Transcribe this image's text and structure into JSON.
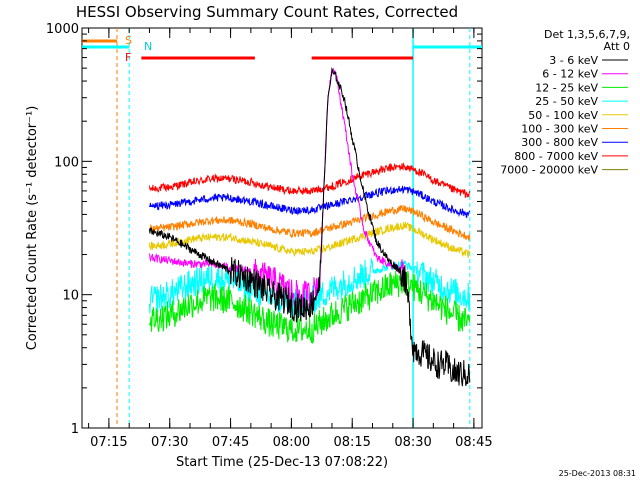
{
  "chart_data": {
    "type": "line",
    "title": "HESSI Observing Summary Count Rates, Corrected",
    "xlabel": "Start Time (25-Dec-13 07:08:22)",
    "ylabel": "Corrected Count Rate (s⁻¹ detector⁻¹)",
    "xlim": [
      "07:08:22",
      "08:47:00"
    ],
    "ylim": [
      1,
      1000
    ],
    "yscale": "log",
    "x_ticks": [
      "07:15",
      "07:30",
      "07:45",
      "08:00",
      "08:15",
      "08:30",
      "08:45"
    ],
    "y_ticks": [
      {
        "value": 1,
        "label": "1"
      },
      {
        "value": 10,
        "label": "10"
      },
      {
        "value": 100,
        "label": "100"
      },
      {
        "value": 1000,
        "label": "1000"
      }
    ],
    "legend_title": [
      "Det 1,3,5,6,7,9,",
      "Att 0"
    ],
    "legend_placement": "right",
    "series": [
      {
        "name": "3 - 6 keV",
        "color": "#000000",
        "x": [
          "07:25",
          "07:30",
          "07:35",
          "07:40",
          "07:45",
          "07:50",
          "07:55",
          "07:59",
          "08:01",
          "08:03",
          "08:05",
          "08:07",
          "08:09",
          "08:10",
          "08:11",
          "08:13",
          "08:15",
          "08:18",
          "08:21",
          "08:24",
          "08:26",
          "08:27",
          "08:28",
          "08:29",
          "08:30",
          "08:33",
          "08:36",
          "08:38",
          "08:40",
          "08:44"
        ],
        "y": [
          30,
          27,
          22,
          18,
          15,
          13,
          10,
          9,
          8,
          8,
          8.5,
          12,
          300,
          470,
          430,
          300,
          150,
          55,
          25,
          18,
          16,
          15,
          13,
          8,
          4,
          3.5,
          3,
          3,
          2.6,
          2.5
        ]
      },
      {
        "name": "6 - 12 keV",
        "color": "#ff00ff",
        "x": [
          "07:25",
          "07:30",
          "07:35",
          "07:40",
          "07:45",
          "07:50",
          "07:55",
          "07:59",
          "08:01",
          "08:03",
          "08:05",
          "08:07",
          "08:09",
          "08:10",
          "08:11",
          "08:13",
          "08:15",
          "08:18",
          "08:21",
          "08:24",
          "08:26",
          "08:27",
          "08:28"
        ],
        "y": [
          19,
          18,
          17,
          17,
          16,
          15,
          13,
          11,
          10,
          10,
          10,
          13,
          300,
          500,
          450,
          200,
          80,
          30,
          19,
          17,
          16,
          15,
          14
        ]
      },
      {
        "name": "12 - 25 keV",
        "color": "#00ee00",
        "x": [
          "07:25",
          "07:30",
          "07:35",
          "07:40",
          "07:45",
          "07:50",
          "07:55",
          "08:00",
          "08:05",
          "08:10",
          "08:15",
          "08:20",
          "08:25",
          "08:28",
          "08:31",
          "08:35",
          "08:40",
          "08:44"
        ],
        "y": [
          6.5,
          7,
          8.5,
          9.5,
          9,
          7.5,
          6,
          5.5,
          5.5,
          7,
          8.5,
          10,
          12,
          12.5,
          11,
          9,
          7,
          6
        ]
      },
      {
        "name": "25 - 50 keV",
        "color": "#00ffff",
        "x": [
          "07:25",
          "07:30",
          "07:35",
          "07:40",
          "07:45",
          "07:50",
          "07:55",
          "08:00",
          "08:05",
          "08:10",
          "08:15",
          "08:20",
          "08:25",
          "08:28",
          "08:31",
          "08:35",
          "08:40",
          "08:44"
        ],
        "y": [
          9,
          10,
          12,
          13.5,
          13,
          11,
          9.5,
          8.5,
          9,
          11,
          13,
          15,
          16.5,
          17,
          15,
          12.5,
          10.5,
          9.5
        ]
      },
      {
        "name": "50 - 100 keV",
        "color": "#e8c800",
        "x": [
          "07:25",
          "07:30",
          "07:35",
          "07:40",
          "07:45",
          "07:50",
          "07:55",
          "08:00",
          "08:05",
          "08:10",
          "08:15",
          "08:20",
          "08:25",
          "08:28",
          "08:31",
          "08:35",
          "08:40",
          "08:44"
        ],
        "y": [
          23,
          24,
          26,
          27,
          27,
          25,
          23,
          21,
          21,
          23,
          26,
          29,
          32,
          33,
          30,
          26,
          22,
          20
        ]
      },
      {
        "name": "100 - 300 keV",
        "color": "#ff8000",
        "x": [
          "07:25",
          "07:30",
          "07:35",
          "07:40",
          "07:45",
          "07:50",
          "07:55",
          "08:00",
          "08:05",
          "08:10",
          "08:15",
          "08:20",
          "08:25",
          "08:28",
          "08:31",
          "08:35",
          "08:40",
          "08:44"
        ],
        "y": [
          31,
          32,
          34,
          36,
          36,
          34,
          31,
          29,
          29,
          32,
          35,
          39,
          43,
          44,
          41,
          35,
          30,
          27
        ]
      },
      {
        "name": "300 - 800 keV",
        "color": "#0000ff",
        "x": [
          "07:25",
          "07:30",
          "07:35",
          "07:40",
          "07:45",
          "07:50",
          "07:55",
          "08:00",
          "08:05",
          "08:10",
          "08:15",
          "08:20",
          "08:25",
          "08:28",
          "08:31",
          "08:35",
          "08:40",
          "08:44"
        ],
        "y": [
          46,
          47,
          50,
          53,
          53,
          50,
          46,
          43,
          43,
          47,
          52,
          57,
          61,
          62,
          58,
          50,
          43,
          40
        ]
      },
      {
        "name": "800 - 7000 keV",
        "color": "#ff0000",
        "x": [
          "07:25",
          "07:30",
          "07:35",
          "07:40",
          "07:45",
          "07:50",
          "07:55",
          "08:00",
          "08:05",
          "08:10",
          "08:15",
          "08:20",
          "08:25",
          "08:28",
          "08:31",
          "08:35",
          "08:40",
          "08:44"
        ],
        "y": [
          62,
          64,
          69,
          74,
          74,
          70,
          64,
          60,
          60,
          65,
          74,
          83,
          90,
          91,
          85,
          72,
          61,
          56
        ]
      },
      {
        "name": "7000 - 20000 keV",
        "color": "#808000",
        "x": [],
        "y": []
      }
    ],
    "flags": [
      {
        "label": "S",
        "color": "#ff8000",
        "x_start": "07:08:22",
        "x_end": "07:17"
      },
      {
        "label": "F",
        "color": "#ff0000",
        "segments": [
          [
            "07:23",
            "07:51"
          ],
          [
            "08:05",
            "08:30"
          ]
        ]
      },
      {
        "label": "N",
        "color": "#00ffff",
        "segments": [
          [
            "07:08:22",
            "07:20"
          ],
          [
            "08:30",
            "08:47"
          ]
        ]
      }
    ],
    "vertical_markers": [
      {
        "x": "07:17",
        "color": "#ff8000",
        "style": "dashed"
      },
      {
        "x": "07:20",
        "color": "#00ffff",
        "style": "dashed"
      },
      {
        "x": "08:30",
        "color": "#00ffff",
        "style": "solid"
      },
      {
        "x": "08:44",
        "color": "#00ffff",
        "style": "dashed"
      }
    ]
  },
  "timestamp": "25-Dec-2013 08:31"
}
